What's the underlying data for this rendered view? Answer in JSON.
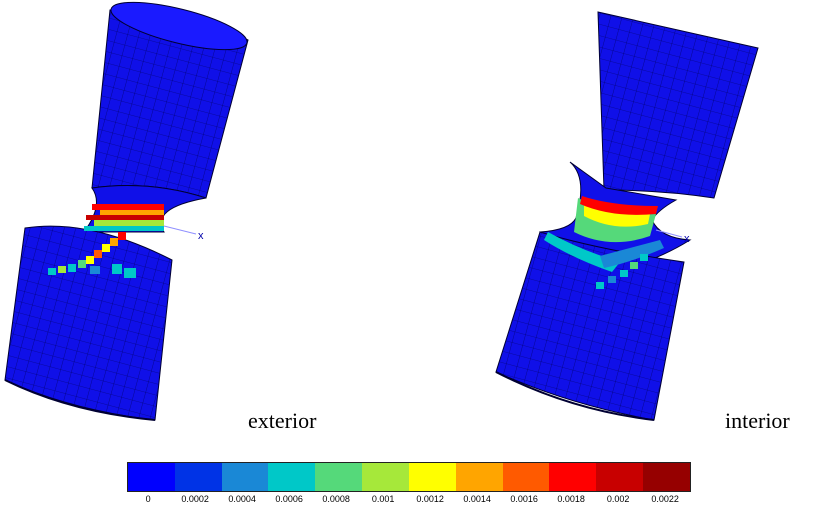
{
  "captions": {
    "exterior": "exterior",
    "interior": "interior"
  },
  "axis_label": "x",
  "colorbar": {
    "colors": [
      "#0000ff",
      "#0033e6",
      "#1a88d6",
      "#00c8c8",
      "#55d97a",
      "#a6e83a",
      "#ffff00",
      "#ffa500",
      "#ff5a00",
      "#ff0000",
      "#c80000",
      "#960000"
    ],
    "tick_labels": [
      "0",
      "0.0002",
      "0.0004",
      "0.0006",
      "0.0008",
      "0.001",
      "0.0012",
      "0.0014",
      "0.0016",
      "0.0018",
      "0.002",
      "0.0022"
    ]
  },
  "palette": {
    "mesh_blue": "#1414e6",
    "mesh_dark": "#0a0a9a",
    "grid_line": "#000060",
    "edge": "#000033"
  }
}
